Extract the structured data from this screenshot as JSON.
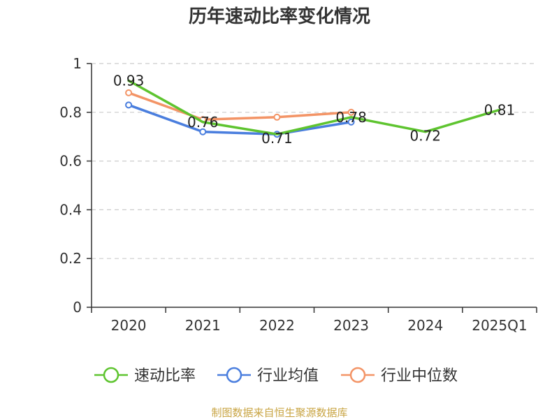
{
  "chart_data": {
    "type": "line",
    "title": "历年速动比率变化情况",
    "categories": [
      "2020",
      "2021",
      "2022",
      "2023",
      "2024",
      "2025Q1"
    ],
    "ylim": [
      0,
      1
    ],
    "yticks": [
      "0",
      "0.2",
      "0.4",
      "0.6",
      "0.8",
      "1"
    ],
    "ytick_values": [
      0,
      0.2,
      0.4,
      0.6,
      0.8,
      1
    ],
    "grid": true,
    "legend_position": "bottom",
    "series": [
      {
        "name": "速动比率",
        "color": "#5ec42f",
        "values": [
          0.93,
          0.76,
          0.71,
          0.78,
          0.72,
          0.81
        ],
        "labels": [
          "0.93",
          "0.76",
          "0.71",
          "0.78",
          "0.72",
          "0.81"
        ]
      },
      {
        "name": "行业均值",
        "color": "#4a7ede",
        "values": [
          0.83,
          0.72,
          0.71,
          0.76,
          null,
          null
        ]
      },
      {
        "name": "行业中位数",
        "color": "#f39466",
        "values": [
          0.88,
          0.77,
          0.78,
          0.8,
          null,
          null
        ]
      }
    ]
  },
  "source_text": "制图数据来自恒生聚源数据库"
}
